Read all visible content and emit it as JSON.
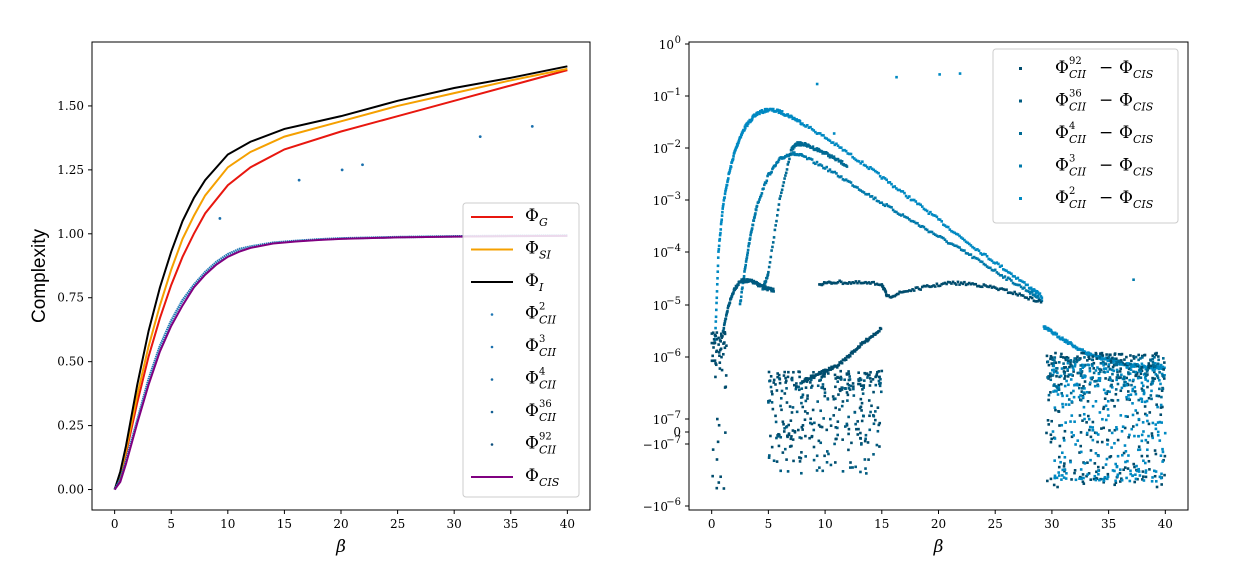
{
  "chart_data": [
    {
      "type": "line",
      "xlabel": "β",
      "ylabel": "Complexity",
      "xlim": [
        -2,
        42
      ],
      "ylim": [
        -0.08,
        1.75
      ],
      "x_ticks": [
        "0",
        "5",
        "10",
        "15",
        "20",
        "25",
        "30",
        "35",
        "40"
      ],
      "y_ticks": [
        "0.00",
        "0.25",
        "0.50",
        "0.75",
        "1.00",
        "1.25",
        "1.50"
      ],
      "legend_position": "lower-right",
      "series": [
        {
          "name": "Φ_G",
          "label": "Φ",
          "sub": "G",
          "sup": "",
          "color": "#e8170f",
          "kind": "line",
          "x": [
            0,
            0.5,
            1,
            2,
            3,
            4,
            5,
            6,
            7,
            8,
            10,
            12,
            15,
            20,
            25,
            30,
            35,
            40
          ],
          "y": [
            0,
            0.05,
            0.14,
            0.34,
            0.52,
            0.67,
            0.8,
            0.91,
            1.0,
            1.08,
            1.19,
            1.26,
            1.33,
            1.4,
            1.46,
            1.52,
            1.58,
            1.64
          ]
        },
        {
          "name": "Φ_SI",
          "label": "Φ",
          "sub": "SI",
          "sup": "",
          "color": "#f5a000",
          "kind": "line",
          "x": [
            0,
            0.5,
            1,
            2,
            3,
            4,
            5,
            6,
            7,
            8,
            10,
            12,
            15,
            20,
            25,
            30,
            35,
            40
          ],
          "y": [
            0,
            0.06,
            0.15,
            0.37,
            0.56,
            0.72,
            0.86,
            0.98,
            1.07,
            1.15,
            1.26,
            1.32,
            1.38,
            1.44,
            1.5,
            1.55,
            1.6,
            1.645
          ]
        },
        {
          "name": "Φ_I",
          "label": "Φ",
          "sub": "I",
          "sup": "",
          "color": "#000000",
          "kind": "line",
          "x": [
            0,
            0.5,
            1,
            2,
            3,
            4,
            5,
            6,
            7,
            8,
            10,
            12,
            15,
            20,
            25,
            30,
            35,
            40
          ],
          "y": [
            0,
            0.07,
            0.17,
            0.41,
            0.62,
            0.79,
            0.93,
            1.05,
            1.14,
            1.21,
            1.31,
            1.36,
            1.41,
            1.46,
            1.52,
            1.57,
            1.61,
            1.655
          ]
        },
        {
          "name": "Φ²_CII",
          "label": "Φ",
          "sub": "CII",
          "sup": "2",
          "color": "#1f77b4",
          "kind": "dots",
          "x": [
            0,
            0.5,
            1,
            2,
            3,
            4,
            5,
            6,
            7,
            8,
            9,
            10,
            11,
            12,
            14,
            16,
            18,
            20,
            25,
            30,
            35,
            40
          ],
          "y": [
            0,
            0.04,
            0.11,
            0.27,
            0.43,
            0.56,
            0.66,
            0.74,
            0.8,
            0.85,
            0.89,
            0.92,
            0.94,
            0.95,
            0.965,
            0.972,
            0.978,
            0.982,
            0.987,
            0.99,
            0.992,
            0.993
          ]
        },
        {
          "name": "Φ³_CII",
          "label": "Φ",
          "sub": "CII",
          "sup": "3",
          "color": "#1a70ad",
          "kind": "dots",
          "x": [
            9.3,
            16.3,
            20.1,
            21.9,
            32.3,
            36.9
          ],
          "y": [
            1.06,
            1.21,
            1.25,
            1.27,
            1.38,
            1.42
          ]
        },
        {
          "name": "Φ⁴_CII",
          "label": "Φ",
          "sub": "CII",
          "sup": "4",
          "color": "#176aa3",
          "kind": "dots",
          "x": [],
          "y": []
        },
        {
          "name": "Φ³⁶_CII",
          "label": "Φ",
          "sub": "CII",
          "sup": "36",
          "color": "#125f93",
          "kind": "dots",
          "x": [],
          "y": []
        },
        {
          "name": "Φ⁹²_CII",
          "label": "Φ",
          "sub": "CII",
          "sup": "92",
          "color": "#0e4f7d",
          "kind": "dots",
          "x": [],
          "y": []
        },
        {
          "name": "Φ_CIS",
          "label": "Φ",
          "sub": "CIS",
          "sup": "",
          "color": "#800080",
          "kind": "line",
          "x": [
            0,
            0.5,
            1,
            2,
            3,
            4,
            5,
            6,
            7,
            8,
            9,
            10,
            11,
            12,
            14,
            16,
            18,
            20,
            25,
            30,
            35,
            40
          ],
          "y": [
            0,
            0.03,
            0.1,
            0.26,
            0.41,
            0.54,
            0.64,
            0.72,
            0.79,
            0.84,
            0.88,
            0.91,
            0.93,
            0.945,
            0.962,
            0.97,
            0.976,
            0.98,
            0.986,
            0.989,
            0.991,
            0.992
          ]
        }
      ]
    },
    {
      "type": "scatter",
      "xlabel": "β",
      "ylabel": "",
      "xlim": [
        -2,
        42
      ],
      "yscale": "symlog",
      "x_ticks": [
        "0",
        "5",
        "10",
        "15",
        "20",
        "25",
        "30",
        "35",
        "40"
      ],
      "y_ticks": [
        {
          "base": "10",
          "exp": "0",
          "neg": false
        },
        {
          "base": "10",
          "exp": "−1",
          "neg": false
        },
        {
          "base": "10",
          "exp": "−2",
          "neg": false
        },
        {
          "base": "10",
          "exp": "−3",
          "neg": false
        },
        {
          "base": "10",
          "exp": "−4",
          "neg": false
        },
        {
          "base": "10",
          "exp": "−5",
          "neg": false
        },
        {
          "base": "10",
          "exp": "−6",
          "neg": false
        },
        {
          "base": "10",
          "exp": "−7",
          "neg": false
        },
        {
          "base": "0",
          "exp": "",
          "neg": false
        },
        {
          "base": "10",
          "exp": "−7",
          "neg": true
        },
        {
          "base": "10",
          "exp": "−6",
          "neg": true
        }
      ],
      "legend_position": "upper-right",
      "series": [
        {
          "name": "Φ⁹²_CII − Φ_CIS",
          "label": "Φ",
          "sub": "CII",
          "sup": "92",
          "minus": "Φ",
          "minus_sub": "CIS",
          "color": "#004c6d"
        },
        {
          "name": "Φ³⁶_CII − Φ_CIS",
          "label": "Φ",
          "sub": "CII",
          "sup": "36",
          "minus": "Φ",
          "minus_sub": "CIS",
          "color": "#005b80"
        },
        {
          "name": "Φ⁴_CII − Φ_CIS",
          "label": "Φ",
          "sub": "CII",
          "sup": "4",
          "minus": "Φ",
          "minus_sub": "CIS",
          "color": "#006a94"
        },
        {
          "name": "Φ³_CII − Φ_CIS",
          "label": "Φ",
          "sub": "CII",
          "sup": "3",
          "minus": "Φ",
          "minus_sub": "CIS",
          "color": "#0079aa"
        },
        {
          "name": "Φ²_CII − Φ_CIS",
          "label": "Φ",
          "sub": "CII",
          "sup": "2",
          "minus": "Φ",
          "minus_sub": "CIS",
          "color": "#0089c2"
        }
      ],
      "curves": [
        {
          "series": 4,
          "x": [
            0.3,
            0.6,
            1,
            1.5,
            2,
            2.5,
            3,
            3.5,
            4,
            5,
            6,
            7,
            8,
            10,
            12,
            14,
            16,
            18,
            20,
            22,
            24,
            26,
            28,
            29.2
          ],
          "y": [
            2e-06,
            0.0001,
            0.0008,
            0.003,
            0.008,
            0.016,
            0.026,
            0.036,
            0.046,
            0.055,
            0.05,
            0.04,
            0.03,
            0.016,
            0.008,
            0.004,
            0.0019,
            0.0009,
            0.00042,
            0.00019,
            9e-05,
            4.5e-05,
            2.2e-05,
            1.4e-05
          ]
        },
        {
          "series": 3,
          "x": [
            2.5,
            3,
            3.5,
            4,
            5,
            6,
            7,
            8,
            10,
            12,
            14,
            16,
            18,
            20,
            22,
            24,
            26,
            28,
            29.2
          ],
          "y": [
            1e-05,
            6e-05,
            0.00025,
            0.0008,
            0.003,
            0.006,
            0.008,
            0.007,
            0.0042,
            0.0023,
            0.0012,
            0.00065,
            0.00036,
            0.0002,
            0.00011,
            6e-05,
            3.2e-05,
            1.8e-05,
            1.2e-05
          ]
        },
        {
          "series": 2,
          "x": [
            4.5,
            5,
            6,
            7,
            7.5,
            8,
            9,
            10,
            11,
            12
          ],
          "y": [
            2e-05,
            4e-05,
            0.001,
            0.009,
            0.012,
            0.012,
            0.01,
            0.008,
            0.006,
            0.0045
          ]
        },
        {
          "series": 1,
          "x": [
            1,
            1.5,
            2,
            2.5,
            3,
            3.5,
            4,
            4.5,
            5,
            5.5
          ],
          "y": [
            3e-06,
            1e-05,
            2e-05,
            2.8e-05,
            2.9e-05,
            2.8e-05,
            2.5e-05,
            2.2e-05,
            2e-05,
            1.9e-05
          ]
        },
        {
          "series": 0,
          "x": [
            9.5,
            11,
            13,
            15,
            15.5,
            17,
            19,
            21,
            23,
            25,
            27,
            29.2
          ],
          "y": [
            2.5e-05,
            2.7e-05,
            2.6e-05,
            2.5e-05,
            1.4e-05,
            1.8e-05,
            2.2e-05,
            2.6e-05,
            2.5e-05,
            2.1e-05,
            1.6e-05,
            1.1e-05
          ]
        },
        {
          "series": 0,
          "x": [
            8,
            9,
            10,
            11,
            12,
            13,
            14,
            15
          ],
          "y": [
            4e-07,
            5e-07,
            6e-07,
            7e-07,
            1e-06,
            1.6e-06,
            2.4e-06,
            3.6e-06
          ]
        },
        {
          "series": 4,
          "x": [
            29.3,
            30,
            31,
            32,
            33,
            34,
            35,
            36,
            37,
            38,
            39,
            40
          ],
          "y": [
            3.8e-06,
            3e-06,
            2.2e-06,
            1.6e-06,
            1.2e-06,
            1e-06,
            9e-07,
            8e-07,
            7.5e-07,
            7e-07,
            6.8e-07,
            6.5e-07
          ]
        }
      ],
      "clouds": [
        {
          "series": 0,
          "x": [
            5,
            15
          ],
          "y": [
            -2e-07,
            6e-07
          ],
          "n": 220
        },
        {
          "series": 1,
          "x": [
            5,
            15
          ],
          "y": [
            -3e-07,
            5e-07
          ],
          "n": 120
        },
        {
          "series": 0,
          "x": [
            29.5,
            40
          ],
          "y": [
            -5e-07,
            1.2e-06
          ],
          "n": 320
        },
        {
          "series": 4,
          "x": [
            30,
            40
          ],
          "y": [
            -4e-07,
            8e-07
          ],
          "n": 320
        },
        {
          "series": 2,
          "x": [
            29.5,
            40
          ],
          "y": [
            2e-07,
            1e-06
          ],
          "n": 120
        },
        {
          "series": 0,
          "x": [
            0,
            1.3
          ],
          "y": [
            -6e-07,
            3e-06
          ],
          "n": 60
        }
      ],
      "outliers": [
        {
          "series": 4,
          "x": 9.3,
          "y": 0.17
        },
        {
          "series": 4,
          "x": 10.8,
          "y": 0.019
        },
        {
          "series": 4,
          "x": 16.3,
          "y": 0.23
        },
        {
          "series": 4,
          "x": 20.1,
          "y": 0.26
        },
        {
          "series": 4,
          "x": 21.9,
          "y": 0.27
        },
        {
          "series": 3,
          "x": 37.2,
          "y": 3e-05
        }
      ]
    }
  ]
}
